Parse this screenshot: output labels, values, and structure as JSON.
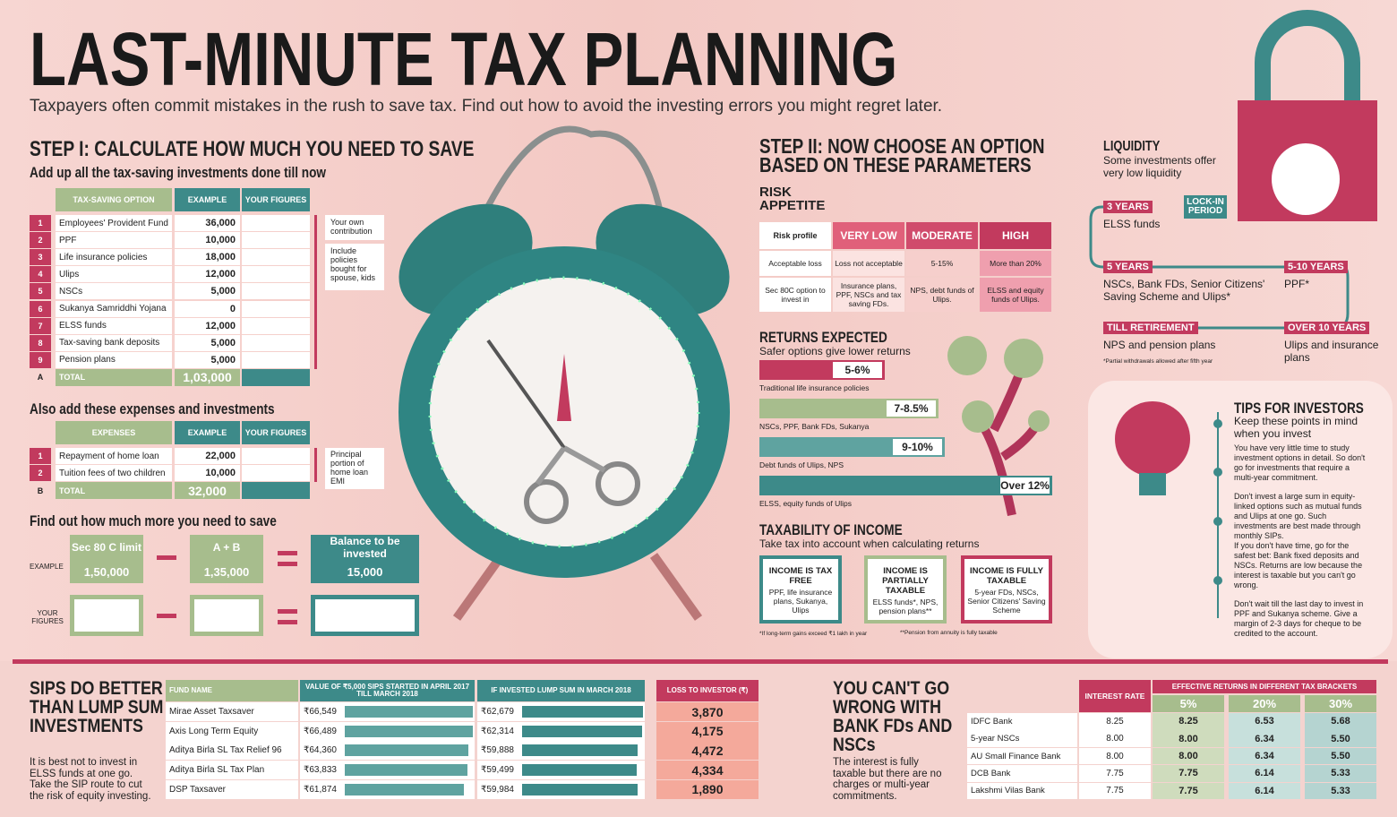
{
  "header": {
    "title": "LAST-MINUTE TAX PLANNING",
    "subtitle": "Taxpayers often commit mistakes in the rush to save tax. Find out how to avoid the investing errors you might regret later."
  },
  "step1": {
    "title": "STEP I: CALCULATE HOW MUCH YOU NEED TO SAVE",
    "intro": "Add up all the tax-saving investments done till now",
    "table1": {
      "columns": [
        "TAX-SAVING OPTION",
        "EXAMPLE",
        "YOUR FIGURES"
      ],
      "rows": [
        [
          "1",
          "Employees' Provident Fund",
          "36,000"
        ],
        [
          "2",
          "PPF",
          "10,000"
        ],
        [
          "3",
          "Life insurance policies",
          "18,000"
        ],
        [
          "4",
          "Ulips",
          "12,000"
        ],
        [
          "5",
          "NSCs",
          "5,000"
        ],
        [
          "6",
          "Sukanya Samriddhi Yojana",
          "0"
        ],
        [
          "7",
          "ELSS funds",
          "12,000"
        ],
        [
          "8",
          "Tax-saving bank deposits",
          "5,000"
        ],
        [
          "9",
          "Pension plans",
          "5,000"
        ]
      ],
      "total": [
        "A",
        "TOTAL",
        "1,03,000"
      ],
      "notes": [
        "Your own contribution",
        "Include policies bought for spouse, kids"
      ]
    },
    "intro2": "Also add these expenses and investments",
    "table2": {
      "columns": [
        "EXPENSES",
        "EXAMPLE",
        "YOUR FIGURES"
      ],
      "rows": [
        [
          "1",
          "Repayment of home loan",
          "22,000"
        ],
        [
          "2",
          "Tuition fees of two children",
          "10,000"
        ]
      ],
      "total": [
        "B",
        "TOTAL",
        "32,000"
      ],
      "notes": [
        "Principal portion of home loan EMI"
      ]
    },
    "intro3": "Find out how much more you need to save",
    "calc": {
      "example_label": "EXAMPLE",
      "your_label": "YOUR FIGURES",
      "boxes": [
        {
          "title": "Sec 80 C limit",
          "value": "1,50,000"
        },
        {
          "title": "A + B",
          "value": "1,35,000"
        },
        {
          "title": "Balance to be invested",
          "value": "15,000"
        }
      ]
    }
  },
  "step2": {
    "title": "STEP II: NOW CHOOSE AN OPTION BASED ON THESE PARAMETERS",
    "risk": {
      "title": "RISK APPETITE",
      "header": [
        "Risk profile",
        "VERY LOW",
        "MODERATE",
        "HIGH"
      ],
      "rows": [
        [
          "Acceptable loss",
          "Loss not acceptable",
          "5-15%",
          "More than 20%"
        ],
        [
          "Sec 80C option to invest in",
          "Insurance plans, PPF, NSCs and tax saving FDs.",
          "NPS, debt funds of Ulips.",
          "ELSS and equity funds of Ulips."
        ]
      ]
    },
    "returns": {
      "title": "RETURNS EXPECTED",
      "subtitle": "Safer options give lower returns",
      "bars": [
        {
          "label": "5-6%",
          "caption": "Traditional life insurance policies"
        },
        {
          "label": "7-8.5%",
          "caption": "NSCs, PPF, Bank FDs, Sukanya"
        },
        {
          "label": "9-10%",
          "caption": "Debt funds of Ulips, NPS"
        },
        {
          "label": "Over 12%",
          "caption": "ELSS, equity funds of Ulips"
        }
      ]
    },
    "taxability": {
      "title": "TAXABILITY OF INCOME",
      "subtitle": "Take tax into account when calculating returns",
      "boxes": [
        {
          "title": "INCOME IS TAX FREE",
          "text": "PPF, life insurance plans, Sukanya, Ulips"
        },
        {
          "title": "INCOME IS PARTIALLY TAXABLE",
          "text": "ELSS funds*, NPS, pension plans**"
        },
        {
          "title": "INCOME IS FULLY TAXABLE",
          "text": "5-year FDs, NSCs, Senior Citizens' Saving Scheme"
        }
      ],
      "notes": [
        "*If long-term gains exceed ₹1 lakh in year",
        "**Pension from annuity is fully taxable"
      ]
    }
  },
  "liquidity": {
    "title": "LIQUIDITY",
    "text": "Some investments offer very low liquidity",
    "lockin": "LOCK-IN PERIOD",
    "items": [
      {
        "period": "3 YEARS",
        "text": "ELSS funds"
      },
      {
        "period": "5 YEARS",
        "text": "NSCs, Bank FDs, Senior Citizens' Saving Scheme and Ulips*"
      },
      {
        "period": "5-10 YEARS",
        "text": "PPF*"
      },
      {
        "period": "TILL RETIREMENT",
        "text": "NPS and pension plans"
      },
      {
        "period": "OVER 10 YEARS",
        "text": "Ulips and insurance plans"
      }
    ],
    "note": "*Partial withdrawals allowed after fifth year"
  },
  "tips": {
    "title": "TIPS FOR INVESTORS",
    "subtitle": "Keep these points in mind when you invest",
    "items": [
      "You have very little time to study investment options in detail. So don't go for investments that require a multi-year commitment.",
      "Don't invest a large sum in equity-linked options such as mutual funds and Ulips at one go. Such investments are best made through monthly SIPs.",
      "If you don't have time, go for the safest bet: Bank fixed deposits and NSCs. Returns are low because the interest is taxable but you can't go wrong.",
      "Don't wait till the last day to invest in PPF and Sukanya scheme. Give a margin of 2-3 days for cheque to be credited to the account."
    ]
  },
  "sips": {
    "title": "SIPS DO BETTER THAN LUMP SUM INVESTMENTS",
    "text": "It is best not to invest in ELSS funds at one go. Take the SIP route to cut the risk of equity investing.",
    "columns": [
      "FUND NAME",
      "VALUE OF ₹5,000 SIPS STARTED IN APRIL 2017 TILL MARCH 2018",
      "IF INVESTED LUMP SUM IN MARCH 2018",
      "LOSS TO INVESTOR (₹)"
    ],
    "rows": [
      {
        "fund": "Mirae Asset Taxsaver",
        "sip": {
          "value": 66549,
          "label": "₹66,549"
        },
        "lump": {
          "value": 62679,
          "label": "₹62,679"
        },
        "loss": "3,870"
      },
      {
        "fund": "Axis Long Term Equity",
        "sip": {
          "value": 66489,
          "label": "₹66,489"
        },
        "lump": {
          "value": 62314,
          "label": "₹62,314"
        },
        "loss": "4,175"
      },
      {
        "fund": "Aditya Birla SL Tax Relief 96",
        "sip": {
          "value": 64360,
          "label": "₹64,360"
        },
        "lump": {
          "value": 59888,
          "label": "₹59,888"
        },
        "loss": "4,472"
      },
      {
        "fund": "Aditya Birla SL Tax Plan",
        "sip": {
          "value": 63833,
          "label": "₹63,833"
        },
        "lump": {
          "value": 59499,
          "label": "₹59,499"
        },
        "loss": "4,334"
      },
      {
        "fund": "DSP Taxsaver",
        "sip": {
          "value": 61874,
          "label": "₹61,874"
        },
        "lump": {
          "value": 59984,
          "label": "₹59,984"
        },
        "loss": "1,890"
      }
    ]
  },
  "fds": {
    "title": "YOU CAN'T GO WRONG WITH BANK FDs AND NSCs",
    "text": "The interest is fully taxable but there are no charges or multi-year commitments.",
    "rate_header": "INTEREST RATE",
    "group_header": "EFFECTIVE RETURNS IN DIFFERENT TAX BRACKETS",
    "brackets": [
      "5%",
      "20%",
      "30%"
    ],
    "rows": [
      [
        "IDFC Bank",
        "8.25",
        "8.25",
        "6.53",
        "5.68"
      ],
      [
        "5-year NSCs",
        "8.00",
        "8.00",
        "6.34",
        "5.50"
      ],
      [
        "AU Small Finance Bank",
        "8.00",
        "8.00",
        "6.34",
        "5.50"
      ],
      [
        "DCB Bank",
        "7.75",
        "7.75",
        "6.14",
        "5.33"
      ],
      [
        "Lakshmi Vilas Bank",
        "7.75",
        "7.75",
        "6.14",
        "5.33"
      ]
    ]
  }
}
